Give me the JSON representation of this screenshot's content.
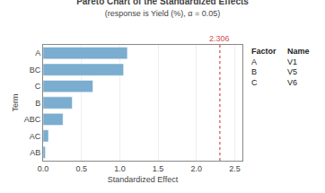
{
  "chart_data": {
    "type": "bar",
    "orientation": "horizontal",
    "title": "Pareto Chart of the Standardized Effects",
    "subtitle": "(response is Yield (%), α = 0.05)",
    "xlabel": "Standardized Effect",
    "ylabel": "Term",
    "categories": [
      "A",
      "BC",
      "C",
      "B",
      "ABC",
      "AC",
      "AB"
    ],
    "values": [
      1.1,
      1.05,
      0.65,
      0.38,
      0.26,
      0.07,
      0.03
    ],
    "color": "#7aadcf",
    "xlim": [
      0,
      2.6
    ],
    "xticks": [
      {
        "value": 0.0,
        "label": "0.0"
      },
      0.5,
      {
        "value": 1.0,
        "label": "1.0"
      },
      1.5,
      {
        "value": 2.0,
        "label": "2.0"
      },
      2.5
    ],
    "grid": true,
    "reference_line": {
      "value": 2.306,
      "label": "2.306",
      "color": "#d05050"
    },
    "annotations": [
      [
        "Factor",
        "Name"
      ],
      [
        "A",
        "V1"
      ],
      [
        "B",
        "V5"
      ],
      [
        "C",
        "V6"
      ]
    ]
  }
}
